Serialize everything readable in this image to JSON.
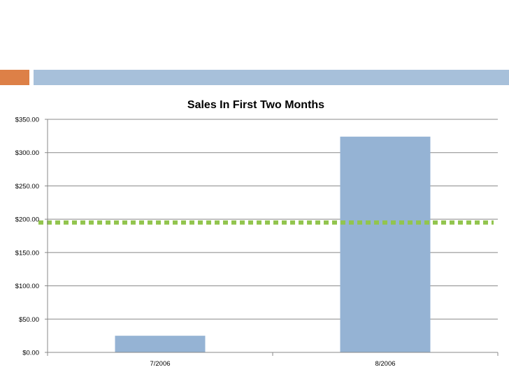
{
  "colors": {
    "accent_orange": "#dd8047",
    "accent_blue": "#a7c0da",
    "bar": "#95b3d4",
    "reference_line": "#92c54e",
    "gridline": "#888888"
  },
  "chart_data": {
    "type": "bar",
    "title": "Sales In First Two Months",
    "categories": [
      "7/2006",
      "8/2006"
    ],
    "values": [
      25,
      324
    ],
    "xlabel": "",
    "ylabel": "",
    "ylim": [
      0,
      350
    ],
    "yticks": [
      0,
      50,
      100,
      150,
      200,
      250,
      300,
      350
    ],
    "ytick_labels": [
      "$0.00",
      "$50.00",
      "$100.00",
      "$150.00",
      "$200.00",
      "$250.00",
      "$300.00",
      "$350.00"
    ],
    "grid": true,
    "legend": "none",
    "reference_line": {
      "value": 195,
      "style": "dotted"
    }
  }
}
